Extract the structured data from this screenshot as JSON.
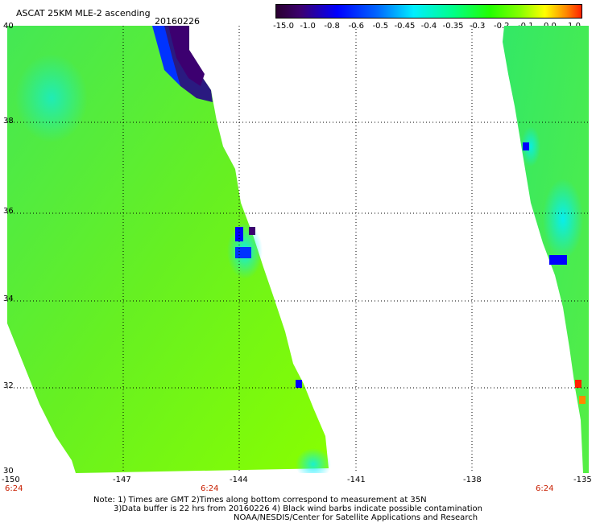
{
  "header": {
    "title": "ASCAT 25KM MLE-2 ascending",
    "date": "20160226"
  },
  "colorbar": {
    "labels": [
      "-15.0",
      "-1.0",
      "-0.8",
      "-0.6",
      "-0.5",
      "-0.45",
      "-0.4",
      "-0.35",
      "-0.3",
      "-0.2",
      "-0.1",
      "0.0",
      "1.0"
    ],
    "colors": [
      "#2a0030",
      "#3c0070",
      "#0000ff",
      "#0066ff",
      "#00b2ff",
      "#00eeff",
      "#00ff88",
      "#22ff00",
      "#55ff00",
      "#88ff00",
      "#ffff00",
      "#ff8800",
      "#ff2200"
    ]
  },
  "map": {
    "lat_labels": [
      "40",
      "38",
      "36",
      "34",
      "32",
      "30"
    ],
    "lon_labels": [
      "-150",
      "-147",
      "-144",
      "-141",
      "-138",
      "-135"
    ],
    "times": [
      "6:24",
      "6:24",
      "6:24"
    ],
    "colors": {
      "field": "#55ee33",
      "field_light": "#88ff00",
      "cyan": "#00eeff",
      "blue": "#0000ff",
      "deep": "#2a0030"
    }
  },
  "notes": {
    "line1": "Note: 1) Times are GMT 2)Times along bottom correspond to measurement at 35N",
    "line2": "3)Data buffer is 22 hrs from 20160226 4) Black wind barbs indicate possible contamination",
    "line3": "NOAA/NESDIS/Center for Satellite Applications and Research"
  }
}
